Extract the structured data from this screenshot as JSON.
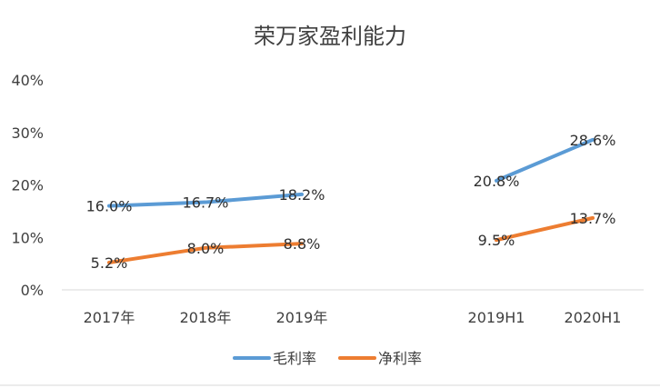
{
  "chart_data": {
    "type": "line",
    "title": "荣万家盈利能力",
    "xlabel": "",
    "ylabel": "",
    "categories": [
      "2017年",
      "2018年",
      "2019年",
      "",
      "2019H1",
      "2020H1"
    ],
    "ylim": [
      0,
      40
    ],
    "yticks": [
      "0%",
      "10%",
      "20%",
      "30%",
      "40%"
    ],
    "grid": false,
    "legend_position": "bottom",
    "series": [
      {
        "name": "毛利率",
        "color": "#5B9BD5",
        "values": [
          16.0,
          16.7,
          18.2,
          null,
          20.8,
          28.6
        ],
        "labels": [
          "16.0%",
          "16.7%",
          "18.2%",
          "",
          "20.8%",
          "28.6%"
        ]
      },
      {
        "name": "净利率",
        "color": "#ED7D31",
        "values": [
          5.2,
          8.0,
          8.8,
          null,
          9.5,
          13.7
        ],
        "labels": [
          "5.2%",
          "8.0%",
          "8.8%",
          "",
          "9.5%",
          "13.7%"
        ]
      }
    ]
  }
}
